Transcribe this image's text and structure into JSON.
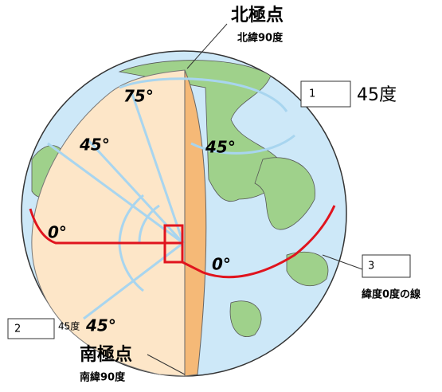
{
  "north_pole": {
    "title": "北極点",
    "subtitle": "北緯90度"
  },
  "south_pole": {
    "title": "南極点",
    "subtitle": "南緯90度"
  },
  "boxes": [
    {
      "number": "1",
      "label": "45度"
    },
    {
      "number": "2",
      "label": "45度"
    },
    {
      "number": "3",
      "label": "緯度0度の線"
    }
  ],
  "angle_labels": [
    "75°",
    "45°",
    "45°",
    "0°",
    "0°",
    "45°"
  ]
}
